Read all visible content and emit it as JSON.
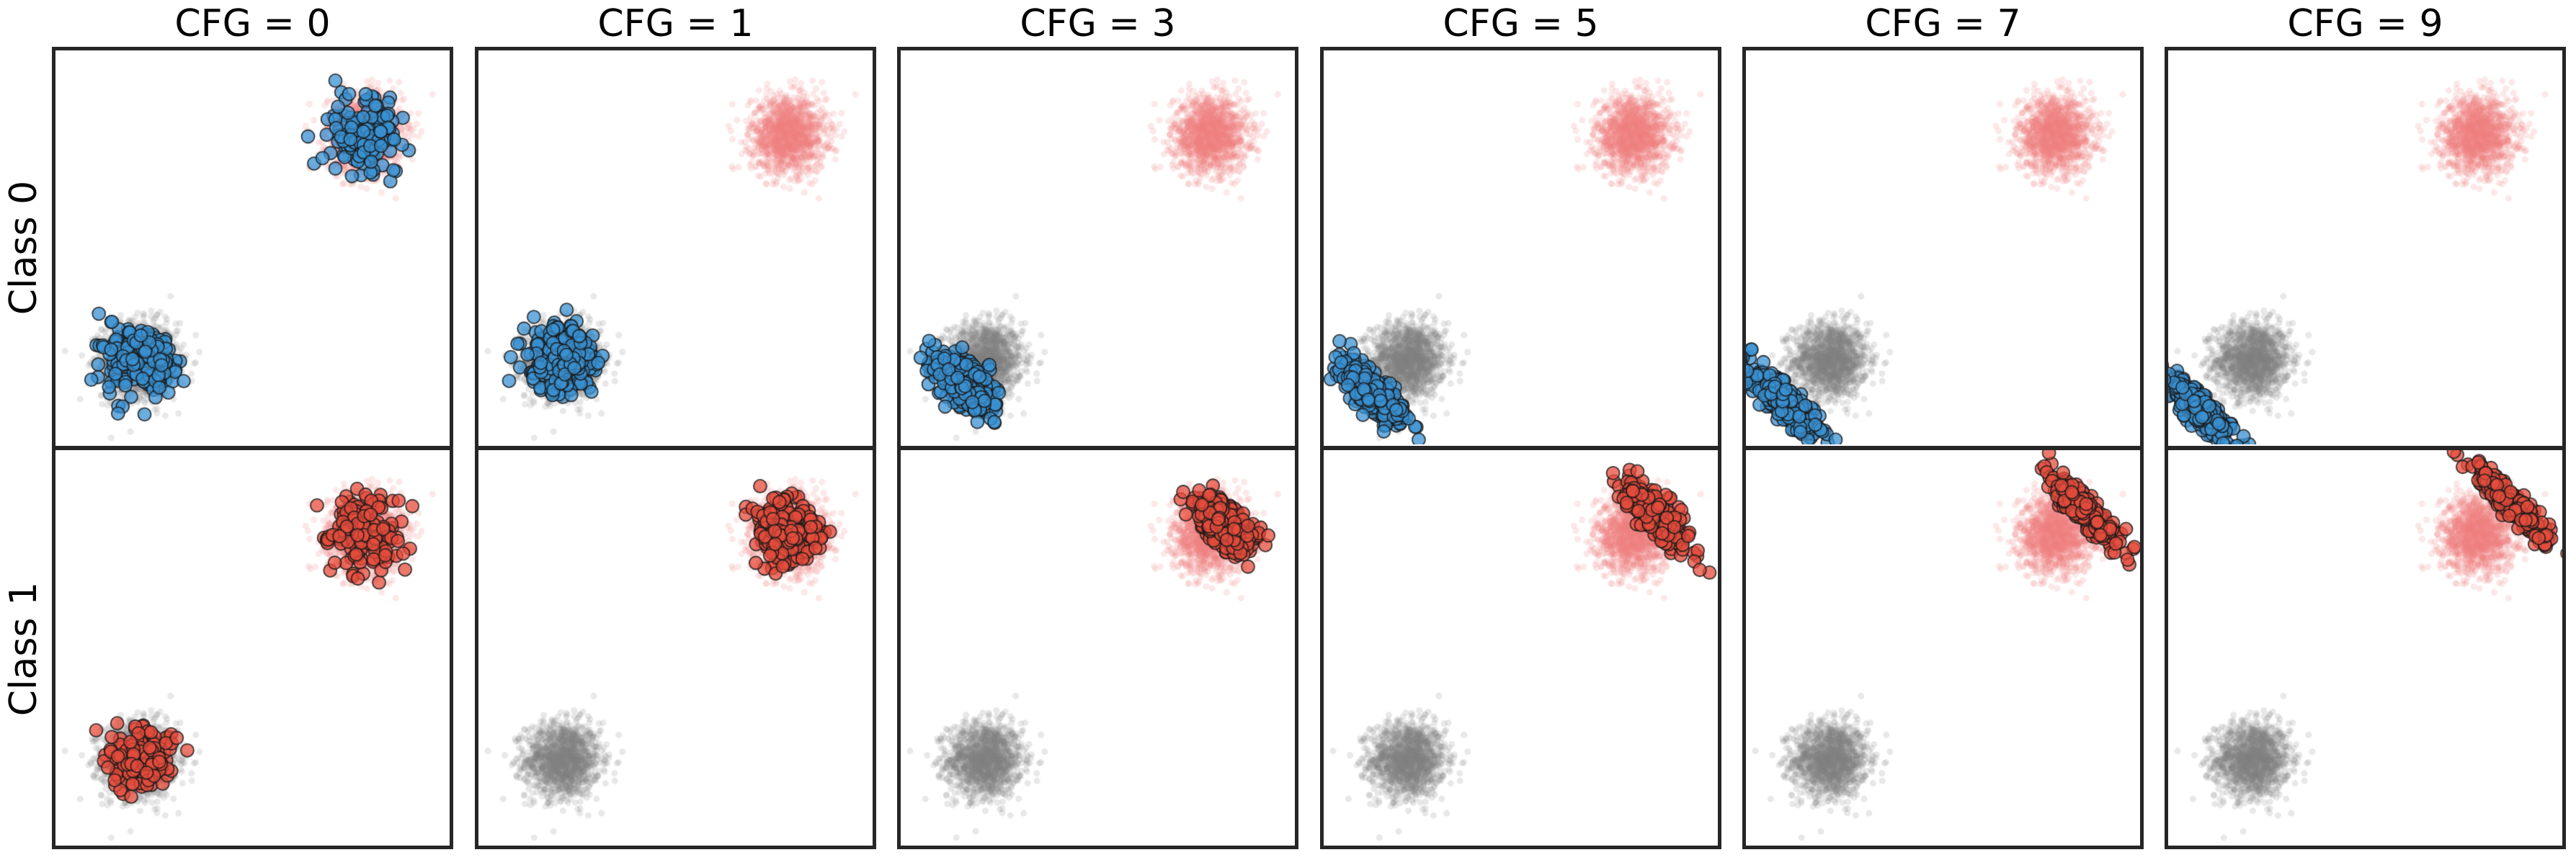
{
  "figure": {
    "column_titles": [
      "CFG = 0",
      "CFG = 1",
      "CFG = 3",
      "CFG = 5",
      "CFG = 7",
      "CFG = 9"
    ],
    "row_labels": [
      "Class 0",
      "Class 1"
    ]
  },
  "colors": {
    "class0_samples": "#3a92d3",
    "class1_samples": "#e74c3c",
    "class0_reference": "#808080",
    "class1_reference": "#f08080",
    "edge": "#1a1a1a",
    "frame": "#262626"
  },
  "chart_data": {
    "type": "scatter",
    "title": "",
    "xlabel": "",
    "ylabel": "",
    "xlim": [
      -3.5,
      3.5
    ],
    "ylim": [
      -3.5,
      3.5
    ],
    "grid": false,
    "ticks": false,
    "layout": {
      "rows": 2,
      "cols": 6
    },
    "reference_clusters": [
      {
        "name": "class0_reference",
        "color": "#808080",
        "alpha": 0.18,
        "center": [
          -2.0,
          -2.0
        ],
        "std": 0.33,
        "n": 1500
      },
      {
        "name": "class1_reference",
        "color": "#f08080",
        "alpha": 0.18,
        "center": [
          2.0,
          2.0
        ],
        "std": 0.33,
        "n": 1500
      }
    ],
    "panels": [
      {
        "row": 0,
        "col": 0,
        "cfg": 0,
        "class": 0,
        "samples": [
          {
            "center": [
              -2.0,
              -2.0
            ],
            "std_diag": 0.32,
            "std_anti": 0.32,
            "n": 190
          },
          {
            "center": [
              2.0,
              2.0
            ],
            "std_diag": 0.3,
            "std_anti": 0.3,
            "n": 150
          }
        ]
      },
      {
        "row": 0,
        "col": 1,
        "cfg": 1,
        "class": 0,
        "samples": [
          {
            "center": [
              -2.0,
              -2.0
            ],
            "std_diag": 0.26,
            "std_anti": 0.28,
            "n": 340
          }
        ]
      },
      {
        "row": 0,
        "col": 2,
        "cfg": 3,
        "class": 0,
        "samples": [
          {
            "center": [
              -2.4,
              -2.4
            ],
            "std_diag": 0.17,
            "std_anti": 0.33,
            "n": 340
          }
        ]
      },
      {
        "row": 0,
        "col": 3,
        "cfg": 5,
        "class": 0,
        "samples": [
          {
            "center": [
              -2.6,
              -2.6
            ],
            "std_diag": 0.14,
            "std_anti": 0.37,
            "n": 340
          }
        ]
      },
      {
        "row": 0,
        "col": 4,
        "cfg": 7,
        "class": 0,
        "samples": [
          {
            "center": [
              -2.8,
              -2.75
            ],
            "std_diag": 0.12,
            "std_anti": 0.4,
            "n": 340
          }
        ]
      },
      {
        "row": 0,
        "col": 5,
        "cfg": 9,
        "class": 0,
        "samples": [
          {
            "center": [
              -2.95,
              -2.85
            ],
            "std_diag": 0.1,
            "std_anti": 0.42,
            "n": 340
          }
        ]
      },
      {
        "row": 1,
        "col": 0,
        "cfg": 0,
        "class": 1,
        "samples": [
          {
            "center": [
              -2.0,
              -2.0
            ],
            "std_diag": 0.26,
            "std_anti": 0.26,
            "n": 170
          },
          {
            "center": [
              2.0,
              2.0
            ],
            "std_diag": 0.32,
            "std_anti": 0.32,
            "n": 170
          }
        ]
      },
      {
        "row": 1,
        "col": 1,
        "cfg": 1,
        "class": 1,
        "samples": [
          {
            "center": [
              2.0,
              2.0
            ],
            "std_diag": 0.26,
            "std_anti": 0.28,
            "n": 340
          }
        ]
      },
      {
        "row": 1,
        "col": 2,
        "cfg": 3,
        "class": 1,
        "samples": [
          {
            "center": [
              2.25,
              2.2
            ],
            "std_diag": 0.17,
            "std_anti": 0.33,
            "n": 340
          }
        ]
      },
      {
        "row": 1,
        "col": 3,
        "cfg": 5,
        "class": 1,
        "samples": [
          {
            "center": [
              2.4,
              2.35
            ],
            "std_diag": 0.12,
            "std_anti": 0.37,
            "n": 340
          }
        ]
      },
      {
        "row": 1,
        "col": 4,
        "cfg": 7,
        "class": 1,
        "samples": [
          {
            "center": [
              2.5,
              2.45
            ],
            "std_diag": 0.1,
            "std_anti": 0.4,
            "n": 340
          }
        ]
      },
      {
        "row": 1,
        "col": 5,
        "cfg": 9,
        "class": 1,
        "samples": [
          {
            "center": [
              2.6,
              2.55
            ],
            "std_diag": 0.08,
            "std_anti": 0.42,
            "n": 340
          }
        ]
      }
    ]
  }
}
